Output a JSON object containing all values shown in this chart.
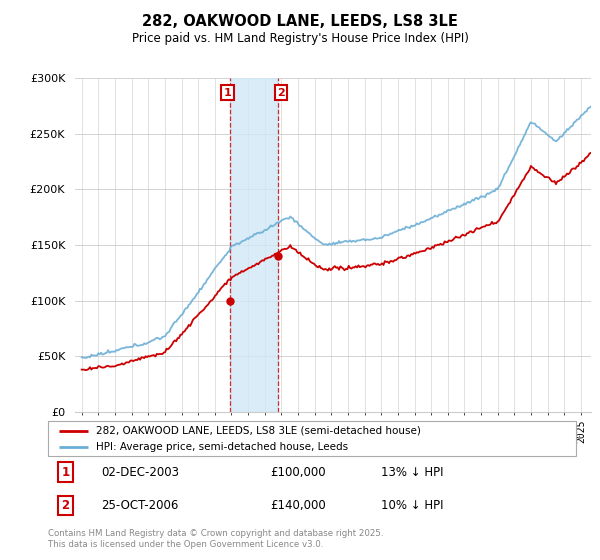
{
  "title": "282, OAKWOOD LANE, LEEDS, LS8 3LE",
  "subtitle": "Price paid vs. HM Land Registry's House Price Index (HPI)",
  "legend_line1": "282, OAKWOOD LANE, LEEDS, LS8 3LE (semi-detached house)",
  "legend_line2": "HPI: Average price, semi-detached house, Leeds",
  "footnote": "Contains HM Land Registry data © Crown copyright and database right 2025.\nThis data is licensed under the Open Government Licence v3.0.",
  "annotation1_date": "02-DEC-2003",
  "annotation1_price": "£100,000",
  "annotation1_hpi": "13% ↓ HPI",
  "annotation2_date": "25-OCT-2006",
  "annotation2_price": "£140,000",
  "annotation2_hpi": "10% ↓ HPI",
  "sale1_year": 2003.92,
  "sale1_value": 100000,
  "sale2_year": 2006.82,
  "sale2_value": 140000,
  "hpi_color": "#6aaed6",
  "price_color": "#cc0000",
  "shade_color": "#d0e8f5",
  "ylim_min": 0,
  "ylim_max": 300000
}
